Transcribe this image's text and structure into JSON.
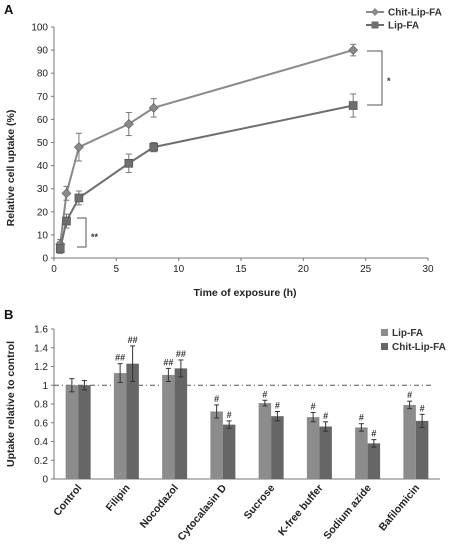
{
  "chart_data": [
    {
      "panel": "A",
      "type": "line",
      "xlabel": "Time of exposure (h)",
      "ylabel": "Relative cell uptake (%)",
      "xlim": [
        0,
        30
      ],
      "ylim": [
        0,
        100
      ],
      "xticks": [
        "0",
        "5",
        "10",
        "15",
        "20",
        "25",
        "30"
      ],
      "yticks": [
        "0",
        "10",
        "20",
        "30",
        "40",
        "50",
        "60",
        "70",
        "80",
        "90",
        "100"
      ],
      "legend_position": "top-right",
      "grid": false,
      "series": [
        {
          "name": "Chit-Lip-FA",
          "marker": "diamond",
          "color": "#8a8a8a",
          "x": [
            0.5,
            1,
            2,
            6,
            8,
            24
          ],
          "y": [
            6,
            28,
            48,
            58,
            65,
            90
          ],
          "err": [
            2,
            3,
            6,
            5,
            4,
            2.5
          ]
        },
        {
          "name": "Lip-FA",
          "marker": "square",
          "color": "#6e6e6e",
          "x": [
            0.5,
            1,
            2,
            6,
            8,
            24
          ],
          "y": [
            4,
            16,
            26,
            41,
            48,
            66
          ],
          "err": [
            2,
            3,
            3,
            4,
            2,
            5
          ]
        }
      ],
      "annotations": [
        {
          "text": "*",
          "between": "24h series"
        },
        {
          "text": "**",
          "between": "1h series"
        }
      ]
    },
    {
      "panel": "B",
      "type": "bar",
      "ylabel": "Uptake relative to control",
      "ylim": [
        0,
        1.6
      ],
      "yticks": [
        "0",
        "0.2",
        "0.4",
        "0.6",
        "0.8",
        "1",
        "1.2",
        "1.4",
        "1.6"
      ],
      "reference_line": 1,
      "legend_position": "top-right",
      "grid": false,
      "categories": [
        "Control",
        "Filipin",
        "Nocodazol",
        "Cytocalasin D",
        "Sucrose",
        "K-free buffer",
        "Sodium azide",
        "Bafilomicin"
      ],
      "series": [
        {
          "name": "Lip-FA",
          "color": "#8c8c8c",
          "values": [
            1.0,
            1.13,
            1.11,
            0.72,
            0.81,
            0.66,
            0.55,
            0.79
          ],
          "err": [
            0.07,
            0.1,
            0.07,
            0.07,
            0.03,
            0.05,
            0.04,
            0.04
          ],
          "labels": [
            "",
            "##",
            "##",
            "#",
            "#",
            "#",
            "#",
            "#"
          ]
        },
        {
          "name": "Chit-Lip-FA",
          "color": "#666666",
          "values": [
            1.0,
            1.23,
            1.18,
            0.58,
            0.67,
            0.56,
            0.38,
            0.62
          ],
          "err": [
            0.05,
            0.19,
            0.09,
            0.04,
            0.05,
            0.05,
            0.04,
            0.07
          ],
          "labels": [
            "",
            "##",
            "##",
            "#",
            "#",
            "#",
            "#",
            "#"
          ]
        }
      ]
    }
  ]
}
